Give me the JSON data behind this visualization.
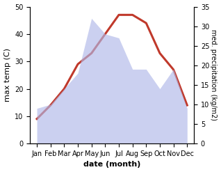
{
  "months": [
    "Jan",
    "Feb",
    "Mar",
    "Apr",
    "May",
    "Jun",
    "Jul",
    "Aug",
    "Sep",
    "Oct",
    "Nov",
    "Dec"
  ],
  "month_positions": [
    1,
    2,
    3,
    4,
    5,
    6,
    7,
    8,
    9,
    10,
    11,
    12
  ],
  "max_temp": [
    9,
    14,
    20,
    29,
    33,
    40,
    47,
    47,
    44,
    33,
    27,
    14
  ],
  "precipitation": [
    9,
    10,
    14,
    18,
    32,
    28,
    27,
    19,
    19,
    14,
    19,
    9
  ],
  "temp_color": "#c0392b",
  "precip_fill_color": "#b0b8e8",
  "precip_alpha": 0.65,
  "left_ylim": [
    0,
    50
  ],
  "right_ylim": [
    0,
    35
  ],
  "left_yticks": [
    0,
    10,
    20,
    30,
    40,
    50
  ],
  "right_yticks": [
    0,
    5,
    10,
    15,
    20,
    25,
    30,
    35
  ],
  "xlabel": "date (month)",
  "ylabel_left": "max temp (C)",
  "ylabel_right": "med. precipitation (kg/m2)",
  "bg_color": "#ffffff",
  "line_width": 2.2,
  "label_fontsize": 8,
  "tick_fontsize": 7
}
